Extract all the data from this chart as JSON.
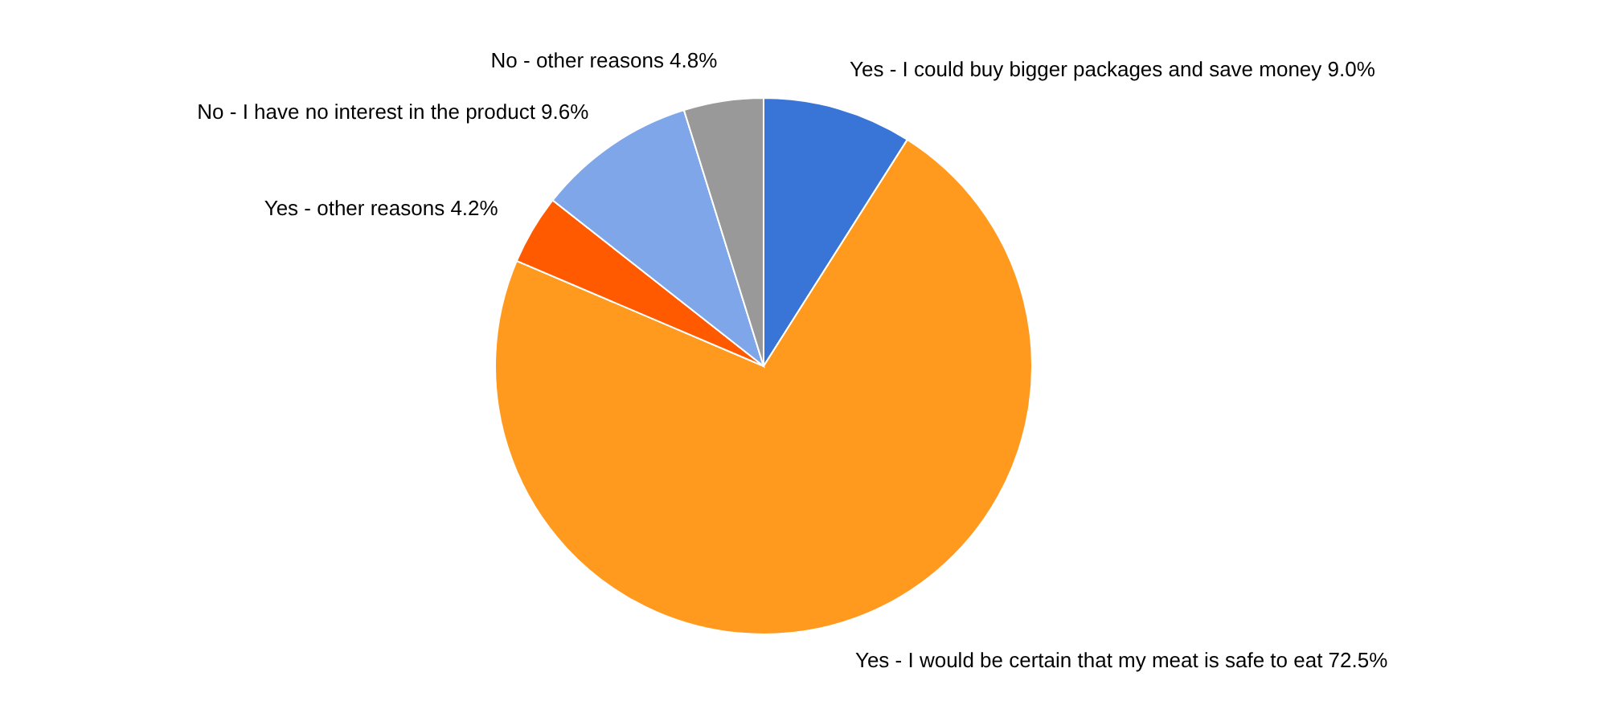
{
  "chart_data": {
    "type": "pie",
    "categories": [
      "Yes - I could buy bigger packages and save money",
      "Yes - I would be certain that my meat is safe to eat",
      "Yes - other reasons",
      "No - I have no interest in the product",
      "No - other reasons"
    ],
    "values": [
      9.0,
      72.5,
      4.2,
      9.6,
      4.8
    ],
    "value_labels": [
      "9.0%",
      "72.5%",
      "4.2%",
      "9.6%",
      "4.8%"
    ],
    "colors": [
      "#3875d7",
      "#ff9a1f",
      "#ff5a00",
      "#7ea6e8",
      "#999999"
    ]
  }
}
